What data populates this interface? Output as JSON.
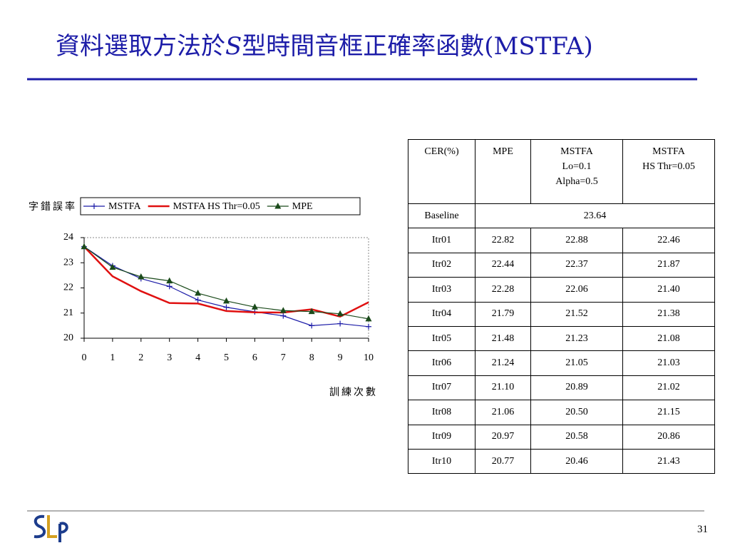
{
  "title": [
    "資料選取方法於",
    "S",
    "型時間音框正確率函數(MSTFA)"
  ],
  "page_number": "31",
  "chart_data": {
    "type": "line",
    "y_label": "字錯誤率",
    "x_label": "訓練次數",
    "x": [
      0,
      1,
      2,
      3,
      4,
      5,
      6,
      7,
      8,
      9,
      10
    ],
    "series": [
      {
        "name": "MSTFA",
        "color": "#1c1ca8",
        "marker": "plus",
        "values": [
          23.64,
          22.88,
          22.37,
          22.06,
          21.52,
          21.23,
          21.05,
          20.89,
          20.5,
          20.58,
          20.46
        ]
      },
      {
        "name": "MSTFA HS Thr=0.05",
        "color": "#e01010",
        "marker": "none",
        "values": [
          23.64,
          22.46,
          21.87,
          21.4,
          21.38,
          21.08,
          21.03,
          21.02,
          21.15,
          20.86,
          21.43
        ]
      },
      {
        "name": "MPE",
        "color": "#1a4a1a",
        "marker": "triangle",
        "values": [
          23.64,
          22.82,
          22.44,
          22.28,
          21.79,
          21.48,
          21.24,
          21.1,
          21.06,
          20.97,
          20.77
        ]
      }
    ],
    "xlim": [
      0,
      10
    ],
    "xticks": [
      0,
      1,
      2,
      3,
      4,
      5,
      6,
      7,
      8,
      9,
      10
    ],
    "ylim": [
      20,
      24
    ],
    "yticks": [
      20,
      21,
      22,
      23,
      24
    ],
    "legend": "top"
  },
  "table": {
    "header": [
      [
        "CER(%)"
      ],
      [
        "MPE"
      ],
      [
        "MSTFA",
        "Lo=0.1",
        "Alpha=0.5"
      ],
      [
        "MSTFA",
        "HS Thr=0.05"
      ]
    ],
    "baseline": [
      "Baseline",
      "23.64"
    ],
    "rows": [
      [
        "Itr01",
        "22.82",
        "22.88",
        "22.46"
      ],
      [
        "Itr02",
        "22.44",
        "22.37",
        "21.87"
      ],
      [
        "Itr03",
        "22.28",
        "22.06",
        "21.40"
      ],
      [
        "Itr04",
        "21.79",
        "21.52",
        "21.38"
      ],
      [
        "Itr05",
        "21.48",
        "21.23",
        "21.08"
      ],
      [
        "Itr06",
        "21.24",
        "21.05",
        "21.03"
      ],
      [
        "Itr07",
        "21.10",
        "20.89",
        "21.02"
      ],
      [
        "Itr08",
        "21.06",
        "20.50",
        "21.15"
      ],
      [
        "Itr09",
        "20.97",
        "20.58",
        "20.86"
      ],
      [
        "Itr10",
        "20.77",
        "20.46",
        "21.43"
      ]
    ]
  }
}
